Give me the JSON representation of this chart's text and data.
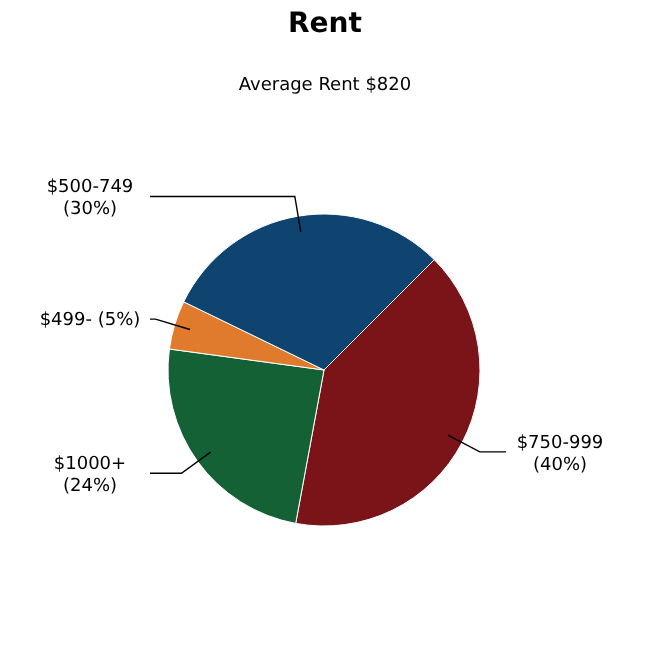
{
  "chart_data": {
    "type": "pie",
    "title": "Rent",
    "subtitle": "Average Rent  $820",
    "categories": [
      "$750-999",
      "$1000+",
      "$499-",
      "$500-749"
    ],
    "values": [
      40,
      24,
      5,
      30
    ],
    "value_labels": [
      "(40%)",
      "(24%)",
      "(5%)",
      "(30%)"
    ],
    "colors": [
      "#7a1418",
      "#136134",
      "#e07a2c",
      "#0f4470"
    ]
  }
}
